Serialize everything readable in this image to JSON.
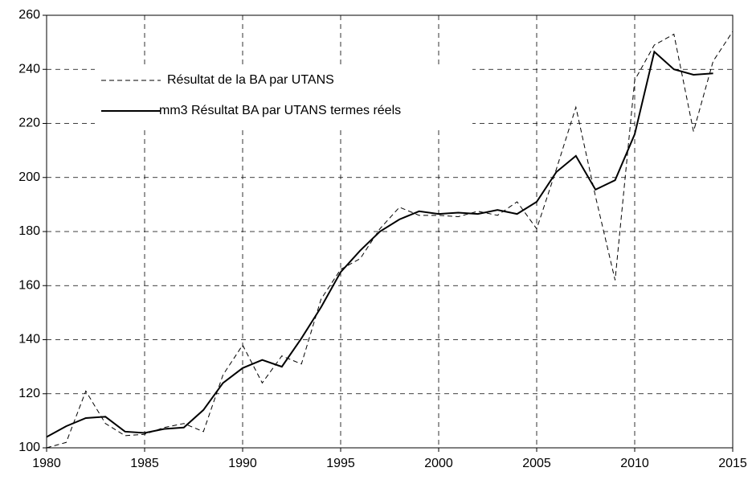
{
  "chart_data": {
    "type": "line",
    "x": [
      1980,
      1981,
      1982,
      1983,
      1984,
      1985,
      1986,
      1987,
      1988,
      1989,
      1990,
      1991,
      1992,
      1993,
      1994,
      1995,
      1996,
      1997,
      1998,
      1999,
      2000,
      2001,
      2002,
      2003,
      2004,
      2005,
      2006,
      2007,
      2008,
      2009,
      2010,
      2011,
      2012,
      2013,
      2014,
      2015
    ],
    "series": [
      {
        "name": "Résultat de la BA par UTANS",
        "color": "#000000",
        "dash": true,
        "values": [
          100,
          102,
          121,
          109,
          104.5,
          105,
          107.5,
          109,
          106,
          127,
          138,
          124,
          134,
          131,
          155,
          166,
          170,
          181,
          189,
          186,
          186,
          185.5,
          187.5,
          186,
          191,
          181,
          203,
          226,
          193,
          162,
          236,
          249,
          253,
          217,
          243,
          254
        ]
      },
      {
        "name": "mm3 Résultat BA par UTANS termes réels",
        "color": "#000000",
        "dash": false,
        "values": [
          104,
          108,
          111,
          111.5,
          106,
          105.5,
          107,
          107.5,
          114,
          124,
          129.5,
          132.5,
          130,
          140.5,
          152,
          165,
          173,
          180,
          184.5,
          187.5,
          186.5,
          187,
          186.5,
          188,
          186.5,
          191,
          202,
          208,
          195.5,
          199,
          216,
          246.5,
          240,
          238,
          238.5,
          null
        ]
      }
    ],
    "xlim": [
      1980,
      2015
    ],
    "xticks": [
      1980,
      1985,
      1990,
      1995,
      2000,
      2005,
      2010,
      2015
    ],
    "ylim": [
      100,
      260
    ],
    "yticks": [
      100,
      120,
      140,
      160,
      180,
      200,
      220,
      240,
      260
    ],
    "grid": true,
    "legend": "upper-left"
  }
}
